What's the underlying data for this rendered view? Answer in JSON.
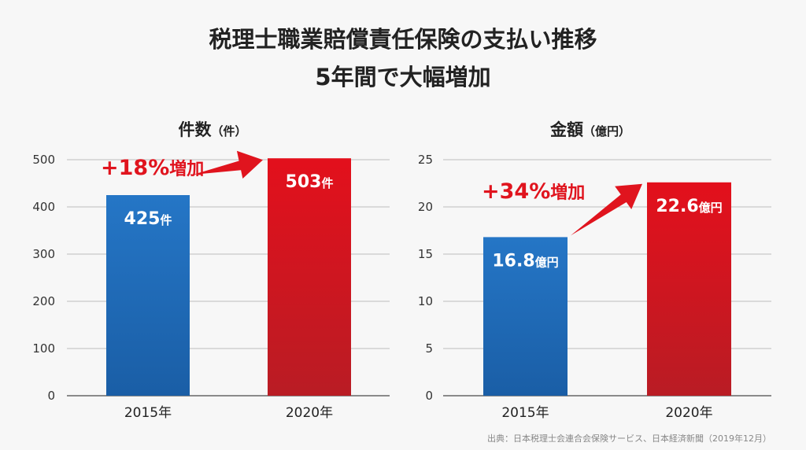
{
  "title_line1": "税理士職業賠償責任保険の支払い推移",
  "title_line2": "5年間で大幅増加",
  "source": "出典：日本税理士会連合会保険サービス、日本経済新聞（2019年12月）",
  "colors": {
    "blue": "#1f6bb8",
    "red": "#e0141e"
  },
  "chart_data": [
    {
      "type": "bar",
      "title": "件数",
      "title_unit": "（件）",
      "categories": [
        "2015年",
        "2020年"
      ],
      "values": [
        425,
        503
      ],
      "value_labels": [
        "425",
        "503"
      ],
      "value_unit": "件",
      "ylim": [
        0,
        500
      ],
      "yticks": [
        "0",
        "100",
        "200",
        "300",
        "400",
        "500"
      ],
      "ytick_values": [
        0,
        100,
        200,
        300,
        400,
        500
      ],
      "grid": true,
      "annotation": {
        "text": "+18%",
        "suffix": "増加"
      }
    },
    {
      "type": "bar",
      "title": "金額",
      "title_unit": "（億円）",
      "categories": [
        "2015年",
        "2020年"
      ],
      "values": [
        16.8,
        22.6
      ],
      "value_labels": [
        "16.8",
        "22.6"
      ],
      "value_unit": "億円",
      "ylim": [
        0,
        25
      ],
      "yticks": [
        "0",
        "5",
        "10",
        "15",
        "20",
        "25"
      ],
      "ytick_values": [
        0,
        5,
        10,
        15,
        20,
        25
      ],
      "grid": true,
      "annotation": {
        "text": "+34%",
        "suffix": "増加"
      }
    }
  ]
}
